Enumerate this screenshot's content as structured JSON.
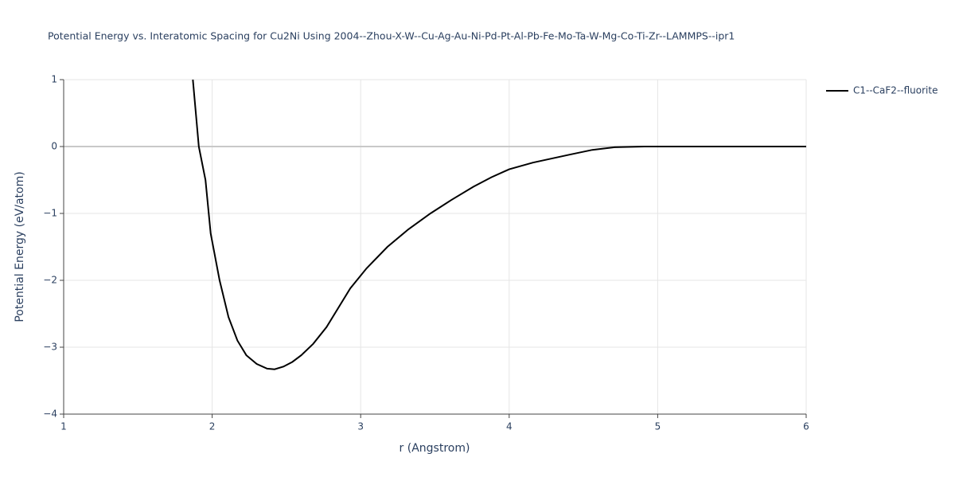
{
  "chart_data": {
    "type": "line",
    "title": "Potential Energy vs. Interatomic Spacing for Cu2Ni Using 2004--Zhou-X-W--Cu-Ag-Au-Ni-Pd-Pt-Al-Pb-Fe-Mo-Ta-W-Mg-Co-Ti-Zr--LAMMPS--ipr1",
    "x_label": "r (Angstrom)",
    "y_label": "Potential Energy (eV/atom)",
    "xlim": [
      1,
      6
    ],
    "ylim": [
      -4,
      1
    ],
    "xticks": [
      1,
      2,
      3,
      4,
      5,
      6
    ],
    "yticks": [
      {
        "value": -4,
        "label": "−4"
      },
      {
        "value": -3,
        "label": "−3"
      },
      {
        "value": -2,
        "label": "−2"
      },
      {
        "value": -1,
        "label": "−1"
      },
      0,
      1
    ],
    "grid": true,
    "legend_position": "right",
    "series": [
      {
        "name": "C1--CaF2--fluorite",
        "color": "#000000",
        "x": [
          1.87,
          1.91,
          1.955,
          1.99,
          2.05,
          2.11,
          2.17,
          2.23,
          2.3,
          2.37,
          2.42,
          2.48,
          2.54,
          2.6,
          2.68,
          2.77,
          2.93,
          3.04,
          3.18,
          3.32,
          3.47,
          3.61,
          3.76,
          3.88,
          4.0,
          4.16,
          4.41,
          4.56,
          4.71,
          4.91,
          5.2,
          5.5,
          5.8,
          6.0
        ],
        "values": [
          1.0,
          0.0,
          -0.5,
          -1.3,
          -2.0,
          -2.55,
          -2.9,
          -3.12,
          -3.25,
          -3.32,
          -3.33,
          -3.29,
          -3.22,
          -3.12,
          -2.95,
          -2.7,
          -2.12,
          -1.82,
          -1.5,
          -1.24,
          -1.0,
          -0.8,
          -0.6,
          -0.46,
          -0.34,
          -0.24,
          -0.12,
          -0.05,
          -0.01,
          0.0,
          0.0,
          0.0,
          0.0,
          0.0
        ]
      }
    ]
  }
}
